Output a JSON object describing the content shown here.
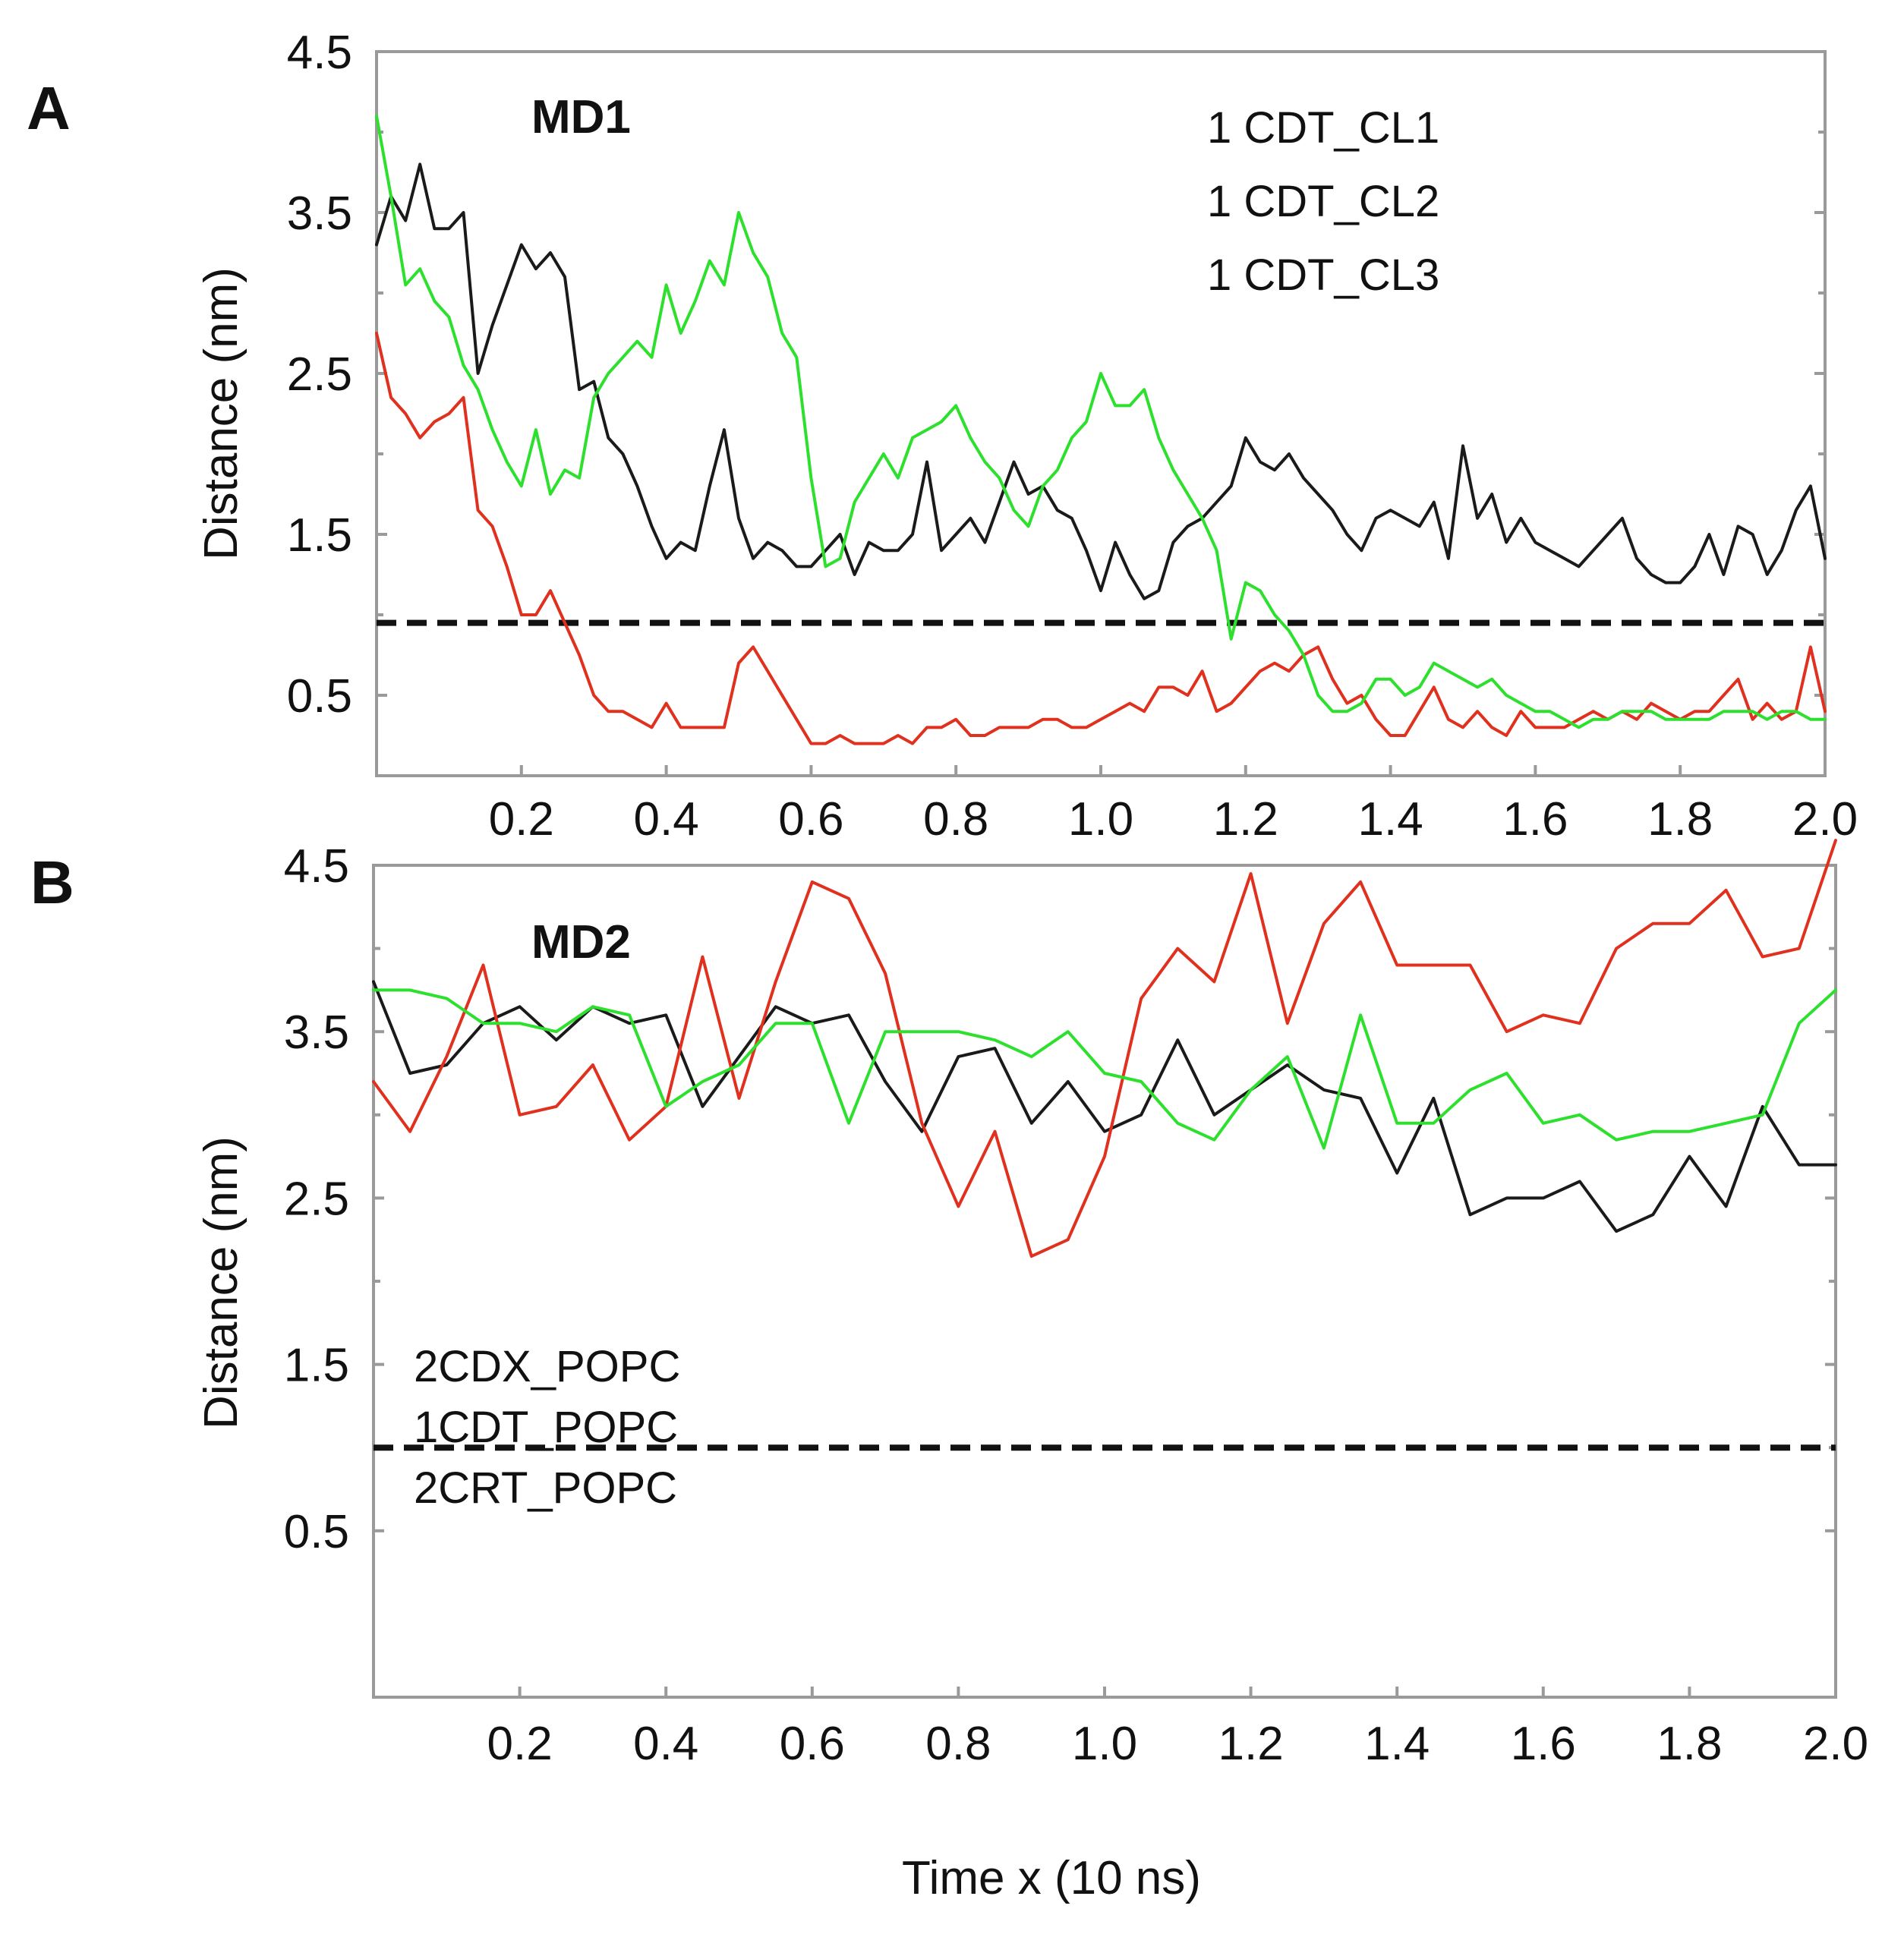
{
  "figure": {
    "xlabel": "Time x (10 ns)"
  },
  "colors": {
    "black": "#1a1a1a",
    "red": "#e0301e",
    "green": "#2ee02e",
    "green_legend": "#1ec83c",
    "dark_red_legend": "#c0140a"
  },
  "chart_data": [
    {
      "type": "line",
      "panel": "A",
      "title": "MD1",
      "xlabel": "",
      "ylabel": "Distance (nm)",
      "xlim": [
        0.0,
        2.0
      ],
      "ylim": [
        0.0,
        4.5
      ],
      "xticks": [
        "0.2",
        "0.4",
        "0.6",
        "0.8",
        "1.0",
        "1.2",
        "1.4",
        "1.6",
        "1.8",
        "2.0"
      ],
      "yticks": [
        "0.5",
        "1.5",
        "2.5",
        "3.5",
        "4.5"
      ],
      "threshold": 0.95,
      "legend": [
        {
          "label": "1 CDT_CL1",
          "color": "#1a1a1a"
        },
        {
          "label": "1 CDT_CL2",
          "color": "#e0301e"
        },
        {
          "label": "1 CDT_CL3",
          "color": "#2ee02e"
        }
      ],
      "series": [
        {
          "name": "1 CDT_CL1",
          "color": "#1a1a1a",
          "x": [
            0.0,
            0.02,
            0.04,
            0.06,
            0.08,
            0.1,
            0.12,
            0.14,
            0.16,
            0.18,
            0.2,
            0.22,
            0.24,
            0.26,
            0.28,
            0.3,
            0.32,
            0.34,
            0.36,
            0.38,
            0.4,
            0.42,
            0.44,
            0.46,
            0.48,
            0.5,
            0.52,
            0.54,
            0.56,
            0.58,
            0.6,
            0.62,
            0.64,
            0.66,
            0.68,
            0.7,
            0.72,
            0.74,
            0.76,
            0.78,
            0.8,
            0.82,
            0.84,
            0.86,
            0.88,
            0.9,
            0.92,
            0.94,
            0.96,
            0.98,
            1.0,
            1.02,
            1.04,
            1.06,
            1.08,
            1.1,
            1.12,
            1.14,
            1.16,
            1.18,
            1.2,
            1.22,
            1.24,
            1.26,
            1.28,
            1.3,
            1.32,
            1.34,
            1.36,
            1.38,
            1.4,
            1.42,
            1.44,
            1.46,
            1.48,
            1.5,
            1.52,
            1.54,
            1.56,
            1.58,
            1.6,
            1.62,
            1.64,
            1.66,
            1.68,
            1.7,
            1.72,
            1.74,
            1.76,
            1.78,
            1.8,
            1.82,
            1.84,
            1.86,
            1.88,
            1.9,
            1.92,
            1.94,
            1.96,
            1.98,
            2.0
          ],
          "values": [
            3.3,
            3.6,
            3.45,
            3.8,
            3.4,
            3.4,
            3.5,
            2.5,
            2.8,
            3.05,
            3.3,
            3.15,
            3.25,
            3.1,
            2.4,
            2.45,
            2.1,
            2.0,
            1.8,
            1.55,
            1.35,
            1.45,
            1.4,
            1.8,
            2.15,
            1.6,
            1.35,
            1.45,
            1.4,
            1.3,
            1.3,
            1.4,
            1.5,
            1.25,
            1.45,
            1.4,
            1.4,
            1.5,
            1.95,
            1.4,
            1.5,
            1.6,
            1.45,
            1.7,
            1.95,
            1.75,
            1.8,
            1.65,
            1.6,
            1.4,
            1.15,
            1.45,
            1.25,
            1.1,
            1.15,
            1.45,
            1.55,
            1.6,
            1.7,
            1.8,
            2.1,
            1.95,
            1.9,
            2.0,
            1.85,
            1.75,
            1.65,
            1.5,
            1.4,
            1.6,
            1.65,
            1.6,
            1.55,
            1.7,
            1.35,
            2.05,
            1.6,
            1.75,
            1.45,
            1.6,
            1.45,
            1.4,
            1.35,
            1.3,
            1.4,
            1.5,
            1.6,
            1.35,
            1.25,
            1.2,
            1.2,
            1.3,
            1.5,
            1.25,
            1.55,
            1.5,
            1.25,
            1.4,
            1.65,
            1.8,
            1.35
          ]
        },
        {
          "name": "1 CDT_CL2",
          "color": "#e0301e",
          "x": [
            0.0,
            0.02,
            0.04,
            0.06,
            0.08,
            0.1,
            0.12,
            0.14,
            0.16,
            0.18,
            0.2,
            0.22,
            0.24,
            0.26,
            0.28,
            0.3,
            0.32,
            0.34,
            0.36,
            0.38,
            0.4,
            0.42,
            0.44,
            0.46,
            0.48,
            0.5,
            0.52,
            0.54,
            0.56,
            0.58,
            0.6,
            0.62,
            0.64,
            0.66,
            0.68,
            0.7,
            0.72,
            0.74,
            0.76,
            0.78,
            0.8,
            0.82,
            0.84,
            0.86,
            0.88,
            0.9,
            0.92,
            0.94,
            0.96,
            0.98,
            1.0,
            1.02,
            1.04,
            1.06,
            1.08,
            1.1,
            1.12,
            1.14,
            1.16,
            1.18,
            1.2,
            1.22,
            1.24,
            1.26,
            1.28,
            1.3,
            1.32,
            1.34,
            1.36,
            1.38,
            1.4,
            1.42,
            1.44,
            1.46,
            1.48,
            1.5,
            1.52,
            1.54,
            1.56,
            1.58,
            1.6,
            1.62,
            1.64,
            1.66,
            1.68,
            1.7,
            1.72,
            1.74,
            1.76,
            1.78,
            1.8,
            1.82,
            1.84,
            1.86,
            1.88,
            1.9,
            1.92,
            1.94,
            1.96,
            1.98,
            2.0
          ],
          "values": [
            2.75,
            2.35,
            2.25,
            2.1,
            2.2,
            2.25,
            2.35,
            1.65,
            1.55,
            1.3,
            1.0,
            1.0,
            1.15,
            0.95,
            0.75,
            0.5,
            0.4,
            0.4,
            0.35,
            0.3,
            0.45,
            0.3,
            0.3,
            0.3,
            0.3,
            0.7,
            0.8,
            0.65,
            0.5,
            0.35,
            0.2,
            0.2,
            0.25,
            0.2,
            0.2,
            0.2,
            0.25,
            0.2,
            0.3,
            0.3,
            0.35,
            0.25,
            0.25,
            0.3,
            0.3,
            0.3,
            0.35,
            0.35,
            0.3,
            0.3,
            0.35,
            0.4,
            0.45,
            0.4,
            0.55,
            0.55,
            0.5,
            0.65,
            0.4,
            0.45,
            0.55,
            0.65,
            0.7,
            0.65,
            0.75,
            0.8,
            0.6,
            0.45,
            0.5,
            0.35,
            0.25,
            0.25,
            0.4,
            0.55,
            0.35,
            0.3,
            0.4,
            0.3,
            0.25,
            0.4,
            0.3,
            0.3,
            0.3,
            0.35,
            0.4,
            0.35,
            0.4,
            0.35,
            0.45,
            0.4,
            0.35,
            0.4,
            0.4,
            0.5,
            0.6,
            0.35,
            0.45,
            0.35,
            0.4,
            0.8,
            0.4
          ]
        },
        {
          "name": "1 CDT_CL3",
          "color": "#2ee02e",
          "x": [
            0.0,
            0.02,
            0.04,
            0.06,
            0.08,
            0.1,
            0.12,
            0.14,
            0.16,
            0.18,
            0.2,
            0.22,
            0.24,
            0.26,
            0.28,
            0.3,
            0.32,
            0.34,
            0.36,
            0.38,
            0.4,
            0.42,
            0.44,
            0.46,
            0.48,
            0.5,
            0.52,
            0.54,
            0.56,
            0.58,
            0.6,
            0.62,
            0.64,
            0.66,
            0.68,
            0.7,
            0.72,
            0.74,
            0.76,
            0.78,
            0.8,
            0.82,
            0.84,
            0.86,
            0.88,
            0.9,
            0.92,
            0.94,
            0.96,
            0.98,
            1.0,
            1.02,
            1.04,
            1.06,
            1.08,
            1.1,
            1.12,
            1.14,
            1.16,
            1.18,
            1.2,
            1.22,
            1.24,
            1.26,
            1.28,
            1.3,
            1.32,
            1.34,
            1.36,
            1.38,
            1.4,
            1.42,
            1.44,
            1.46,
            1.48,
            1.5,
            1.52,
            1.54,
            1.56,
            1.58,
            1.6,
            1.62,
            1.64,
            1.66,
            1.68,
            1.7,
            1.72,
            1.74,
            1.76,
            1.78,
            1.8,
            1.82,
            1.84,
            1.86,
            1.88,
            1.9,
            1.92,
            1.94,
            1.96,
            1.98,
            2.0
          ],
          "values": [
            4.1,
            3.6,
            3.05,
            3.15,
            2.95,
            2.85,
            2.55,
            2.4,
            2.15,
            1.95,
            1.8,
            2.15,
            1.75,
            1.9,
            1.85,
            2.35,
            2.5,
            2.6,
            2.7,
            2.6,
            3.05,
            2.75,
            2.95,
            3.2,
            3.05,
            3.5,
            3.25,
            3.1,
            2.75,
            2.6,
            1.85,
            1.3,
            1.35,
            1.7,
            1.85,
            2.0,
            1.85,
            2.1,
            2.15,
            2.2,
            2.3,
            2.1,
            1.95,
            1.85,
            1.65,
            1.55,
            1.8,
            1.9,
            2.1,
            2.2,
            2.5,
            2.3,
            2.3,
            2.4,
            2.1,
            1.9,
            1.75,
            1.6,
            1.4,
            0.85,
            1.2,
            1.15,
            1.0,
            0.9,
            0.75,
            0.5,
            0.4,
            0.4,
            0.45,
            0.6,
            0.6,
            0.5,
            0.55,
            0.7,
            0.65,
            0.6,
            0.55,
            0.6,
            0.5,
            0.45,
            0.4,
            0.4,
            0.35,
            0.3,
            0.35,
            0.35,
            0.4,
            0.4,
            0.4,
            0.35,
            0.35,
            0.35,
            0.35,
            0.4,
            0.4,
            0.4,
            0.35,
            0.4,
            0.4,
            0.35,
            0.35
          ]
        }
      ]
    },
    {
      "type": "line",
      "panel": "B",
      "title": "MD2",
      "xlabel": "Time x (10 ns)",
      "ylabel": "Distance (nm)",
      "xlim": [
        0.0,
        2.0
      ],
      "ylim": [
        -0.5,
        4.5
      ],
      "xticks": [
        "0.2",
        "0.4",
        "0.6",
        "0.8",
        "1.0",
        "1.2",
        "1.4",
        "1.6",
        "1.8",
        "2.0"
      ],
      "yticks": [
        "0.5",
        "1.5",
        "2.5",
        "3.5",
        "4.5"
      ],
      "threshold": 1.0,
      "legend": [
        {
          "label": "2CDX_POPC",
          "color": "#1a1a1a"
        },
        {
          "label": "1CDT_POPC",
          "color": "#c0140a"
        },
        {
          "label": "2CRT_POPC",
          "color": "#1ec83c"
        }
      ],
      "series": [
        {
          "name": "2CDX_POPC",
          "color": "#1a1a1a",
          "x": [
            0.0,
            0.05,
            0.1,
            0.15,
            0.2,
            0.25,
            0.3,
            0.35,
            0.4,
            0.45,
            0.5,
            0.55,
            0.6,
            0.65,
            0.7,
            0.75,
            0.8,
            0.85,
            0.9,
            0.95,
            1.0,
            1.05,
            1.1,
            1.15,
            1.2,
            1.25,
            1.3,
            1.35,
            1.4,
            1.45,
            1.5,
            1.55,
            1.6,
            1.65,
            1.7,
            1.75,
            1.8,
            1.85,
            1.9,
            1.95,
            2.0
          ],
          "values": [
            3.8,
            3.25,
            3.3,
            3.55,
            3.65,
            3.45,
            3.65,
            3.55,
            3.6,
            3.05,
            3.35,
            3.65,
            3.55,
            3.6,
            3.2,
            2.9,
            3.35,
            3.4,
            2.95,
            3.2,
            2.9,
            3.0,
            3.45,
            3.0,
            3.15,
            3.3,
            3.15,
            3.1,
            2.65,
            3.1,
            2.4,
            2.5,
            2.5,
            2.6,
            2.3,
            2.4,
            2.75,
            2.45,
            3.05,
            2.7,
            2.7
          ]
        },
        {
          "name": "1CDT_POPC",
          "color": "#e0301e",
          "x": [
            0.0,
            0.05,
            0.1,
            0.15,
            0.2,
            0.25,
            0.3,
            0.35,
            0.4,
            0.45,
            0.5,
            0.55,
            0.6,
            0.65,
            0.7,
            0.75,
            0.8,
            0.85,
            0.9,
            0.95,
            1.0,
            1.05,
            1.1,
            1.15,
            1.2,
            1.25,
            1.3,
            1.35,
            1.4,
            1.45,
            1.5,
            1.55,
            1.6,
            1.65,
            1.7,
            1.75,
            1.8,
            1.85,
            1.9,
            1.95,
            2.0
          ],
          "values": [
            3.2,
            2.9,
            3.35,
            3.9,
            3.0,
            3.05,
            3.3,
            2.85,
            3.05,
            3.95,
            3.1,
            3.8,
            4.4,
            4.3,
            3.85,
            2.95,
            2.45,
            2.9,
            2.15,
            2.25,
            2.75,
            3.7,
            4.0,
            3.8,
            4.45,
            3.55,
            4.15,
            4.4,
            3.9,
            3.9,
            3.9,
            3.5,
            3.6,
            3.55,
            4.0,
            4.15,
            4.15,
            4.35,
            3.95,
            4.0,
            4.65
          ]
        },
        {
          "name": "2CRT_POPC",
          "color": "#2ee02e",
          "x": [
            0.0,
            0.05,
            0.1,
            0.15,
            0.2,
            0.25,
            0.3,
            0.35,
            0.4,
            0.45,
            0.5,
            0.55,
            0.6,
            0.65,
            0.7,
            0.75,
            0.8,
            0.85,
            0.9,
            0.95,
            1.0,
            1.05,
            1.1,
            1.15,
            1.2,
            1.25,
            1.3,
            1.35,
            1.4,
            1.45,
            1.5,
            1.55,
            1.6,
            1.65,
            1.7,
            1.75,
            1.8,
            1.85,
            1.9,
            1.95,
            2.0
          ],
          "values": [
            3.75,
            3.75,
            3.7,
            3.55,
            3.55,
            3.5,
            3.65,
            3.6,
            3.05,
            3.2,
            3.3,
            3.55,
            3.55,
            2.95,
            3.5,
            3.5,
            3.5,
            3.45,
            3.35,
            3.5,
            3.25,
            3.2,
            2.95,
            2.85,
            3.15,
            3.35,
            2.8,
            3.6,
            2.95,
            2.95,
            3.15,
            3.25,
            2.95,
            3.0,
            2.85,
            2.9,
            2.9,
            2.95,
            3.0,
            3.55,
            3.75
          ]
        }
      ]
    }
  ]
}
